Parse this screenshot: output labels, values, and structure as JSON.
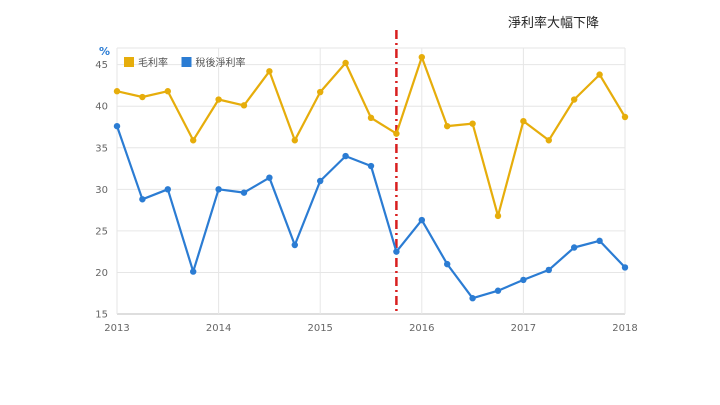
{
  "chart_data": {
    "type": "line",
    "title": "淨利率大幅下降",
    "ylabel": "%",
    "ylim": [
      15,
      47
    ],
    "xlim": [
      2013,
      2018
    ],
    "yticks": [
      "15",
      "20",
      "25",
      "30",
      "35",
      "40",
      "45"
    ],
    "xticks": [
      "2013",
      "2014",
      "2015",
      "2016",
      "2017",
      "2018"
    ],
    "grid": true,
    "legend": "top-left",
    "marker_x": 2015.75,
    "x": [
      2013.0,
      2013.25,
      2013.5,
      2013.75,
      2014.0,
      2014.25,
      2014.5,
      2014.75,
      2015.0,
      2015.25,
      2015.5,
      2015.75,
      2016.0,
      2016.25,
      2016.5,
      2016.75,
      2017.0,
      2017.25,
      2017.5,
      2017.75,
      2018.0
    ],
    "series": [
      {
        "name": "毛利率",
        "color": "#e6ad0b",
        "values": [
          41.8,
          41.1,
          41.8,
          35.9,
          40.8,
          40.1,
          44.2,
          35.9,
          41.7,
          45.2,
          38.6,
          36.7,
          45.9,
          37.6,
          37.9,
          26.8,
          38.2,
          35.9,
          40.8,
          43.8,
          38.7
        ]
      },
      {
        "name": "稅後淨利率",
        "color": "#2b7cd3",
        "values": [
          37.6,
          28.8,
          30.0,
          20.1,
          30.0,
          29.6,
          31.4,
          23.3,
          31.0,
          34.0,
          32.8,
          22.5,
          26.3,
          21.0,
          16.9,
          17.8,
          19.1,
          20.3,
          23.0,
          23.8,
          20.6
        ]
      }
    ]
  }
}
